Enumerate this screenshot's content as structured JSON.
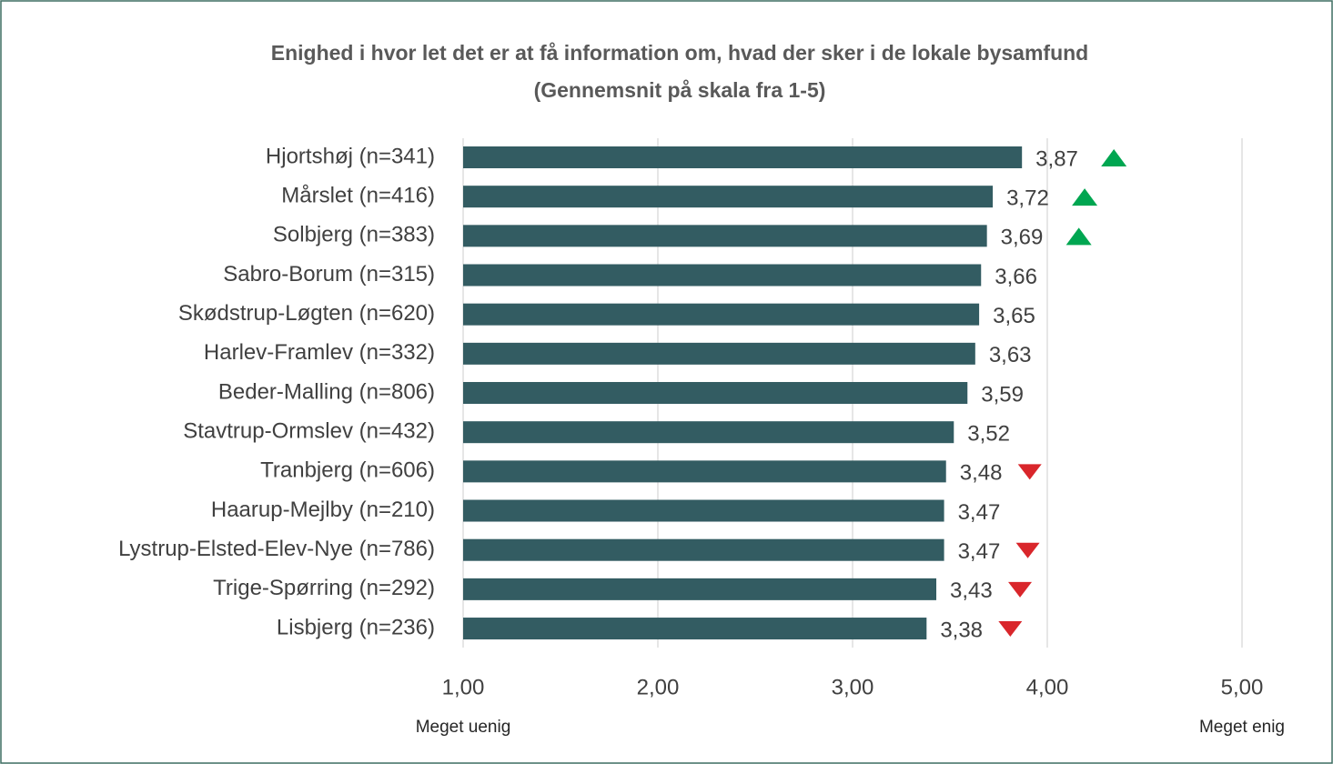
{
  "chart_data": {
    "type": "barh",
    "title": [
      "Enighed i hvor let det er at få information om, hvad der sker i de lokale bysamfund",
      "(Gennemsnit på skala fra 1-5)"
    ],
    "categories": [
      "Hjortshøj (n=341)",
      "Mårslet (n=416)",
      "Solbjerg (n=383)",
      "Sabro-Borum (n=315)",
      "Skødstrup-Løgten (n=620)",
      "Harlev-Framlev (n=332)",
      "Beder-Malling (n=806)",
      "Stavtrup-Ormslev (n=432)",
      "Tranbjerg (n=606)",
      "Haarup-Mejlby (n=210)",
      "Lystrup-Elsted-Elev-Nye (n=786)",
      "Trige-Spørring (n=292)",
      "Lisbjerg (n=236)"
    ],
    "values": [
      3.87,
      3.72,
      3.69,
      3.66,
      3.65,
      3.63,
      3.59,
      3.52,
      3.48,
      3.47,
      3.47,
      3.43,
      3.38
    ],
    "value_labels": [
      "3,87",
      "3,72",
      "3,69",
      "3,66",
      "3,65",
      "3,63",
      "3,59",
      "3,52",
      "3,48",
      "3,47",
      "3,47",
      "3,43",
      "3,38"
    ],
    "significance": [
      "up",
      "up",
      "up",
      null,
      null,
      null,
      null,
      null,
      "down",
      null,
      "down",
      "down",
      "down"
    ],
    "color": "#335c62",
    "up_color": "#00a651",
    "down_color": "#d9262b",
    "xlim": [
      1,
      5
    ],
    "xticks": [
      {
        "value": 1,
        "label": "1,00"
      },
      {
        "value": 2,
        "label": "2,00"
      },
      {
        "value": 3,
        "label": "3,00"
      },
      {
        "value": 4,
        "label": "4,00"
      },
      {
        "value": 5,
        "label": "5,00"
      }
    ],
    "xlim_labels": [
      "Meget uenig",
      "Meget enig"
    ],
    "grid": true
  }
}
